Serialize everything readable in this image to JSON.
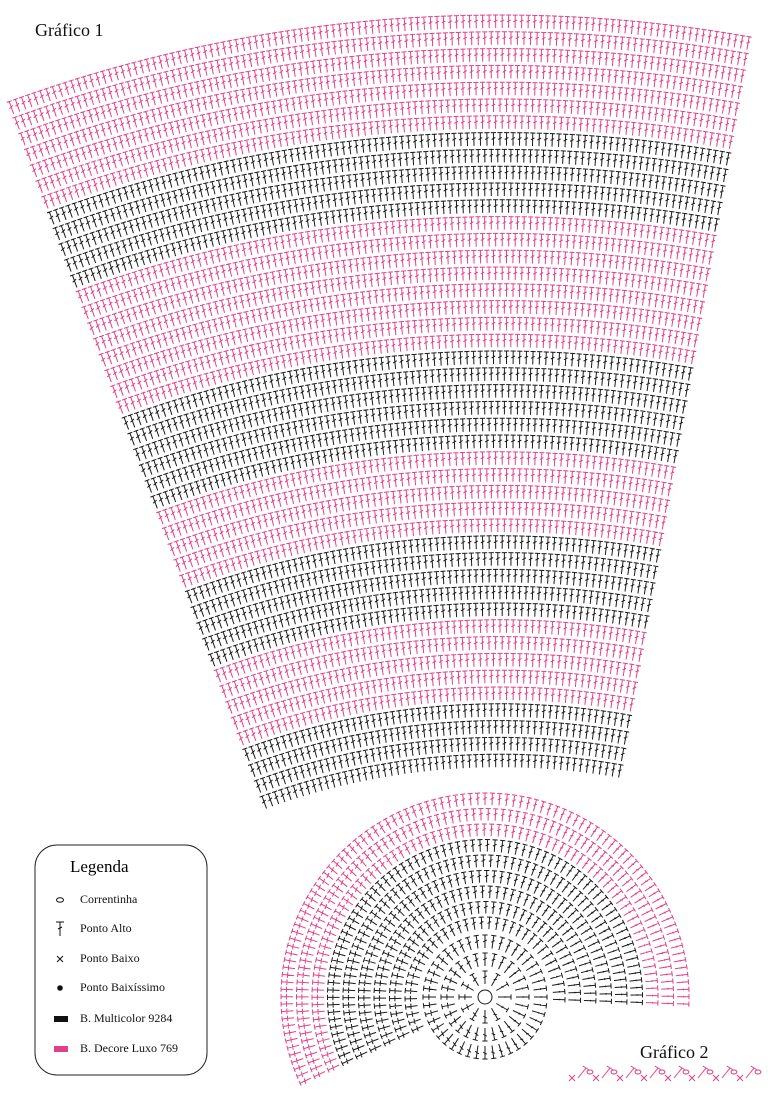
{
  "charts": [
    {
      "title": "Gráfico 1"
    },
    {
      "title": "Gráfico 2"
    }
  ],
  "legend": {
    "title": "Legenda",
    "items": [
      {
        "label": "Correntinha"
      },
      {
        "label": "Ponto Alto"
      },
      {
        "label": "Ponto Baixo"
      },
      {
        "label": "Ponto Baixíssimo"
      },
      {
        "label": "B. Multicolor 9284"
      },
      {
        "label": "B. Decore Luxo 769"
      }
    ]
  }
}
